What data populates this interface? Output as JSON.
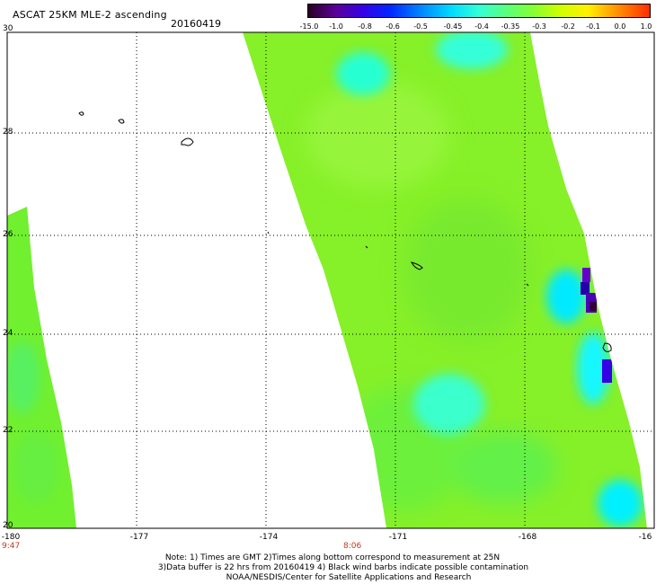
{
  "header": {
    "title": "ASCAT 25KM MLE-2 ascending",
    "date": "20160419"
  },
  "colorbar": {
    "labels": [
      "-15.0",
      "-1.0",
      "-0.8",
      "-0.6",
      "-0.5",
      "-0.45",
      "-0.4",
      "-0.35",
      "-0.3",
      "-0.2",
      "-0.1",
      "0.0",
      "1.0"
    ],
    "colors": [
      "#2a0024",
      "#5a0098",
      "#3600e6",
      "#0028ff",
      "#0087ff",
      "#00dcff",
      "#33ffd7",
      "#5aff7d",
      "#86ff32",
      "#d2ff00",
      "#fff000",
      "#ff8c00",
      "#ff2d00"
    ]
  },
  "map": {
    "lon_ticks": [
      "-180",
      "-177",
      "-174",
      "-171",
      "-168",
      "-16"
    ],
    "lat_ticks": [
      "30",
      "28",
      "26",
      "24",
      "22",
      "20"
    ],
    "times": [
      {
        "lon": "-180",
        "label": "9:47"
      },
      {
        "lon": "-172",
        "label": "8:06"
      }
    ],
    "extent": {
      "lon_min": -180,
      "lon_max": -165,
      "lat_min": 20,
      "lat_max": 30
    }
  },
  "notes": [
    "Note: 1) Times are GMT 2)Times along bottom correspond to measurement at 25N",
    "3)Data buffer is 22 hrs from 20160419 4) Black wind barbs indicate possible contamination",
    "NOAA/NESDIS/Center for Satellite Applications and Research"
  ]
}
